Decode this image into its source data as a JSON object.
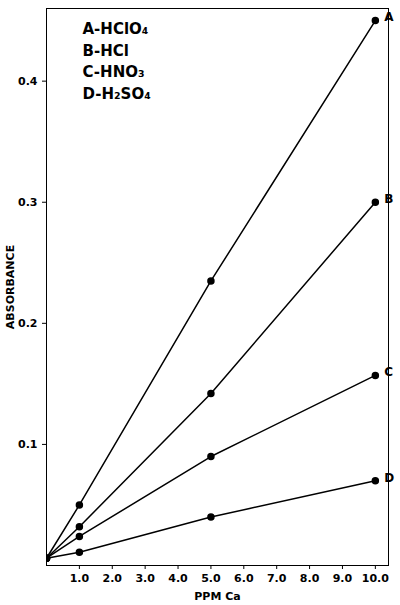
{
  "chart_data": {
    "type": "line",
    "x_label": "PPM Ca",
    "y_label": "ABSORBANCE",
    "x": [
      0,
      1,
      5,
      10
    ],
    "series": [
      {
        "name": "A-HClO₄",
        "color": "#000000",
        "values": [
          0.006,
          0.05,
          0.235,
          0.45
        ]
      },
      {
        "name": "B-HCl",
        "color": "#000000",
        "values": [
          0.006,
          0.032,
          0.142,
          0.3
        ]
      },
      {
        "name": "C-HNO₃",
        "color": "#000000",
        "values": [
          0.006,
          0.024,
          0.09,
          0.157
        ]
      },
      {
        "name": "D-H₂SO₄",
        "color": "#000000",
        "values": [
          0.006,
          0.011,
          0.04,
          0.07
        ]
      }
    ],
    "xlim": [
      0,
      10.4
    ],
    "ylim": [
      0,
      0.46
    ],
    "xticks": [
      {
        "value": 1,
        "label": "1.0"
      },
      {
        "value": 2,
        "label": "2.0"
      },
      {
        "value": 3,
        "label": "3.0"
      },
      {
        "value": 4,
        "label": "4.0"
      },
      {
        "value": 5,
        "label": "5.0"
      },
      {
        "value": 6,
        "label": "6.0"
      },
      {
        "value": 7,
        "label": "7.0"
      },
      {
        "value": 8,
        "label": "8.0"
      },
      {
        "value": 9,
        "label": "9.0"
      },
      {
        "value": 10,
        "label": "10.0"
      }
    ],
    "yticks": [
      0.1,
      0.2,
      0.3,
      0.4
    ],
    "grid": false,
    "legend": "top-left",
    "marker": "circle"
  }
}
